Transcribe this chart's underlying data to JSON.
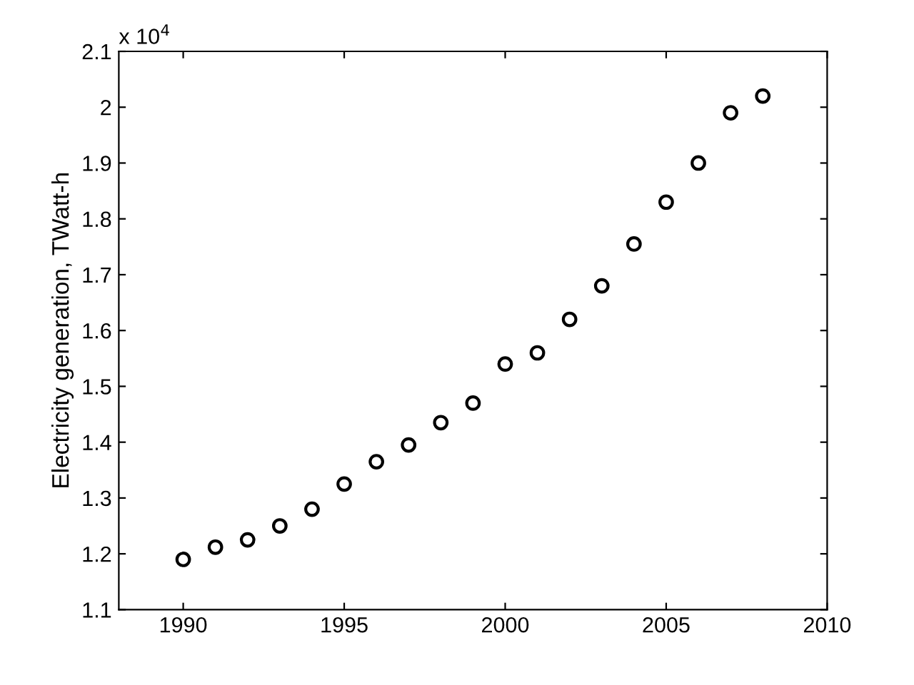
{
  "chart_data": {
    "type": "scatter",
    "ylabel": "Electricity generation, TWatt-h",
    "annotations": [
      "x 10$^{4}$"
    ],
    "x": [
      1990,
      1991,
      1992,
      1993,
      1994,
      1995,
      1996,
      1997,
      1998,
      1999,
      2000,
      2001,
      2002,
      2003,
      2004,
      2005,
      2006,
      2007,
      2008
    ],
    "series": [
      {
        "color": "#000000",
        "values": [
          1.19,
          1.212,
          1.225,
          1.25,
          1.28,
          1.325,
          1.365,
          1.395,
          1.435,
          1.47,
          1.54,
          1.56,
          1.62,
          1.68,
          1.755,
          1.83,
          1.9,
          1.99,
          2.02
        ]
      }
    ],
    "xlim": [
      1988,
      2010
    ],
    "xticks": [
      1990,
      1995,
      2000,
      2005,
      2010
    ],
    "ylim": [
      1.1,
      2.1
    ],
    "yticks": [
      1.1,
      1.2,
      1.3,
      1.4,
      1.5,
      1.6,
      1.7,
      1.8,
      1.9,
      2,
      2.1
    ],
    "marker": "circle",
    "grid": false,
    "legend": false
  }
}
